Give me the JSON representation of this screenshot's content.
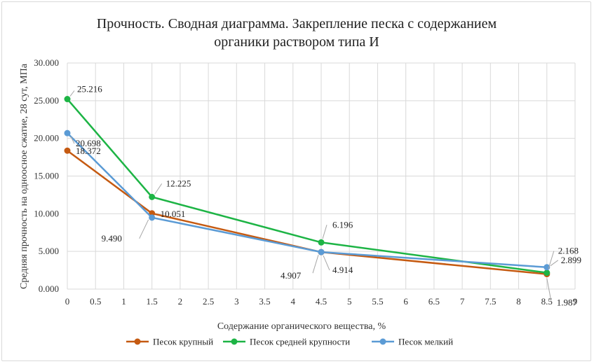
{
  "chart_data": {
    "type": "line",
    "title_lines": [
      "Прочность. Сводная диаграмма. Закрепление песка с содержанием",
      "органики раствором типа И"
    ],
    "xlabel": "Содержание органического вещества, %",
    "ylabel": "Средняя прочность на одноосное сжатие, 28 сут, МПа",
    "xlim": [
      0,
      9
    ],
    "ylim": [
      0,
      30
    ],
    "x_ticks": [
      0,
      0.5,
      1,
      1.5,
      2,
      2.5,
      3,
      3.5,
      4,
      4.5,
      5,
      5.5,
      6,
      6.5,
      7,
      7.5,
      8,
      8.5,
      9
    ],
    "x_tick_labels": [
      "0",
      "0.5",
      "1",
      "1.5",
      "2",
      "2.5",
      "3",
      "3.5",
      "4",
      "4.5",
      "5",
      "5.5",
      "6",
      "6.5",
      "7",
      "7.5",
      "8",
      "8.5",
      "9"
    ],
    "y_ticks": [
      0,
      5,
      10,
      15,
      20,
      25,
      30
    ],
    "y_tick_labels": [
      "0.000",
      "5.000",
      "10.000",
      "15.000",
      "20.000",
      "25.000",
      "30.000"
    ],
    "grid": true,
    "legend_position": "bottom",
    "x": [
      0,
      1.5,
      4.5,
      8.5
    ],
    "series": [
      {
        "name": "Песок крупный",
        "color": "#c55a11",
        "values": [
          18.372,
          10.051,
          4.907,
          1.987
        ],
        "labels": [
          "18.372",
          "10.051",
          "4.907",
          "1.987"
        ]
      },
      {
        "name": "Песок средней крупности",
        "color": "#1db445",
        "values": [
          25.216,
          12.225,
          6.196,
          2.168
        ],
        "labels": [
          "25.216",
          "12.225",
          "6.196",
          "2.168"
        ]
      },
      {
        "name": "Песок мелкий",
        "color": "#5b9bd5",
        "values": [
          20.698,
          9.49,
          4.914,
          2.899
        ],
        "labels": [
          "20.698",
          "9.490",
          "4.914",
          "2.899"
        ]
      }
    ]
  }
}
